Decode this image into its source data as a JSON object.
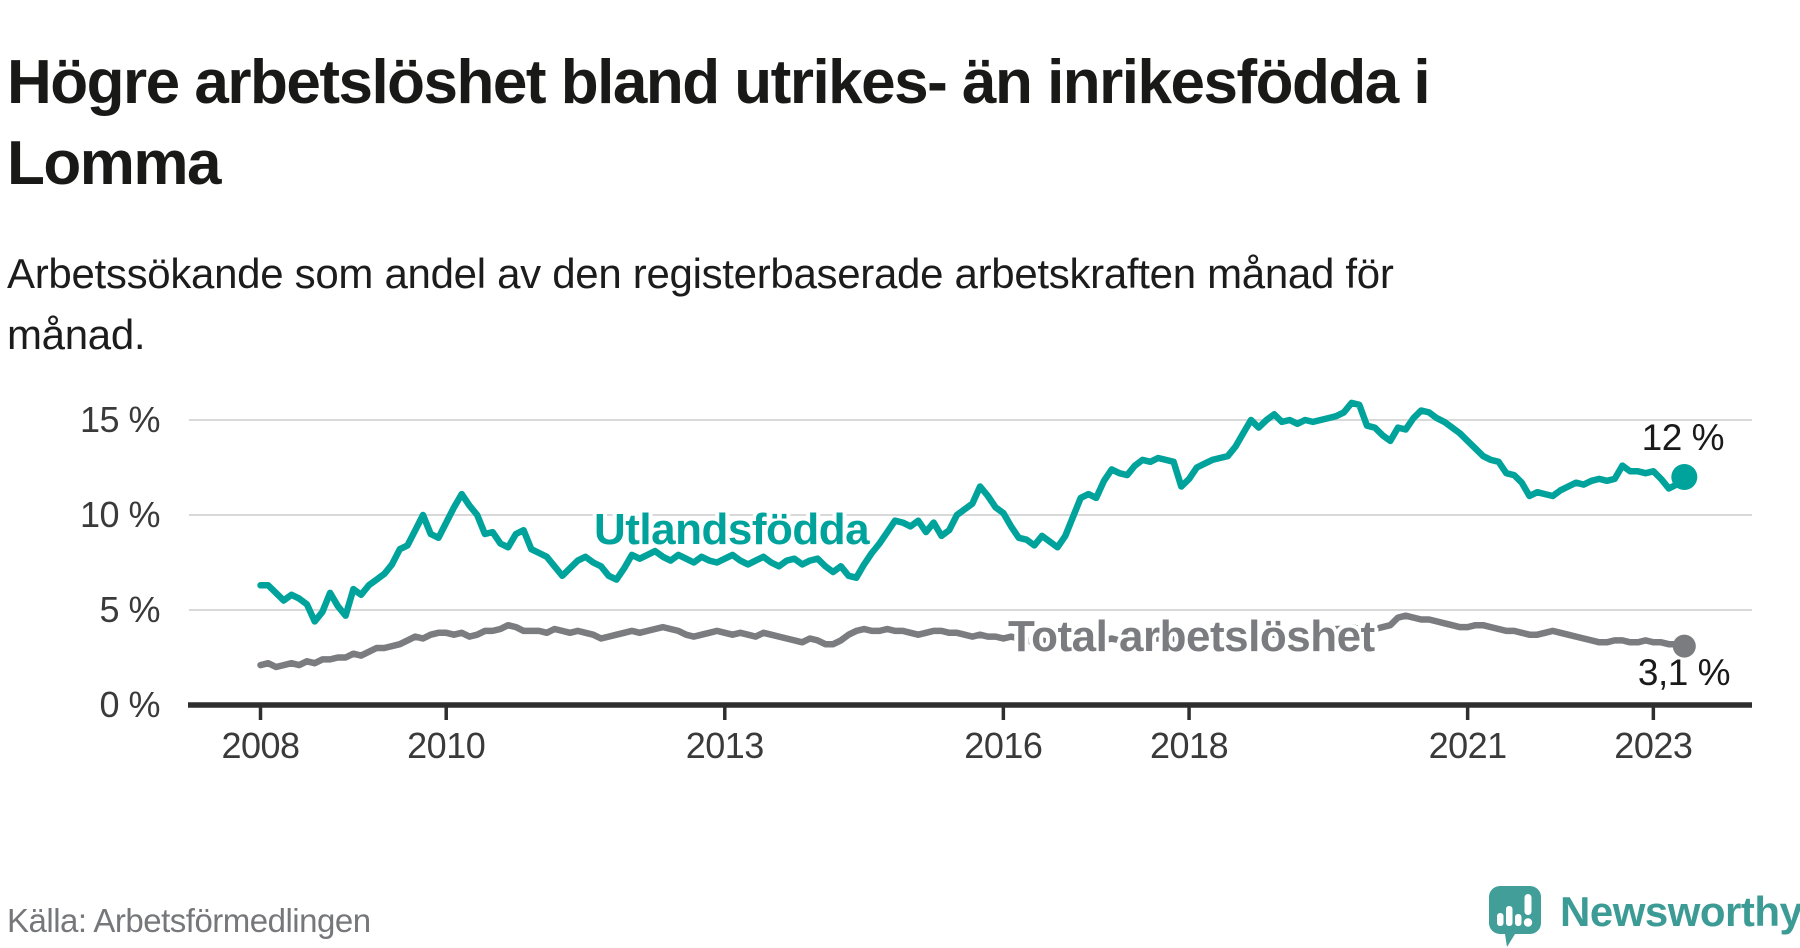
{
  "header": {
    "title": "Högre arbetslöshet bland utrikes- än inrikesfödda i Lomma",
    "title_lines": [
      "Högre arbetslöshet bland utrikes- än inrikesfödda i",
      "Lomma"
    ],
    "subtitle": "Arbetssökande som andel av den registerbaserade arbetskraften månad för månad.",
    "subtitle_lines": [
      "Arbetssökande som andel av den registerbaserade arbetskraften månad för",
      "månad."
    ]
  },
  "footer": {
    "source": "Källa: Arbetsförmedlingen",
    "brand": "Newsworthy"
  },
  "colors": {
    "teal": "#00a39b",
    "gray": "#7b7c80",
    "grid": "#d9d9d9",
    "axis": "#2e2e2e",
    "tick_text": "#3a3a3a",
    "value_text": "#1a1a1a",
    "brand_teal": "#3d9b95",
    "logo_bg": "#419e98"
  },
  "chart_data": {
    "type": "line",
    "title": "Högre arbetslöshet bland utrikes- än inrikesfödda i Lomma",
    "xlabel": "",
    "ylabel": "Arbetssökande som andel av den registerbaserade arbetskraften",
    "unit": "%",
    "frequency": "monthly",
    "x_start": "2008-01",
    "x_end": "2023-05",
    "ylim": [
      0,
      17
    ],
    "grid": "horizontal",
    "y_ticks": [
      {
        "value": 0,
        "label": "0 %"
      },
      {
        "value": 5,
        "label": "5 %"
      },
      {
        "value": 10,
        "label": "10 %"
      },
      {
        "value": 15,
        "label": "15 %"
      }
    ],
    "x_ticks": [
      {
        "year": 2008,
        "label": "2008"
      },
      {
        "year": 2010,
        "label": "2010"
      },
      {
        "year": 2013,
        "label": "2013"
      },
      {
        "year": 2016,
        "label": "2016"
      },
      {
        "year": 2018,
        "label": "2018"
      },
      {
        "year": 2021,
        "label": "2021"
      },
      {
        "year": 2023,
        "label": "2023"
      }
    ],
    "series": [
      {
        "name": "Utlandsfödda",
        "label": "Utlandsfödda",
        "color": "#00a39b",
        "end_label": "12 %",
        "end_value": 12.0,
        "values": [
          6.3,
          6.3,
          5.9,
          5.5,
          5.8,
          5.6,
          5.3,
          4.4,
          4.9,
          5.9,
          5.2,
          4.7,
          6.1,
          5.8,
          6.3,
          6.6,
          6.9,
          7.4,
          8.2,
          8.4,
          9.2,
          10.0,
          9.0,
          8.8,
          9.6,
          10.4,
          11.1,
          10.5,
          10.0,
          9.0,
          9.1,
          8.5,
          8.3,
          9.0,
          9.2,
          8.2,
          8.0,
          7.8,
          7.3,
          6.8,
          7.2,
          7.6,
          7.8,
          7.5,
          7.3,
          6.8,
          6.6,
          7.2,
          7.9,
          7.7,
          7.9,
          8.1,
          7.8,
          7.6,
          7.9,
          7.7,
          7.5,
          7.8,
          7.6,
          7.5,
          7.7,
          7.9,
          7.6,
          7.4,
          7.6,
          7.8,
          7.5,
          7.3,
          7.6,
          7.7,
          7.4,
          7.6,
          7.7,
          7.3,
          7.0,
          7.3,
          6.8,
          6.7,
          7.4,
          8.0,
          8.5,
          9.1,
          9.7,
          9.6,
          9.4,
          9.7,
          9.1,
          9.6,
          8.9,
          9.2,
          10.0,
          10.3,
          10.6,
          11.5,
          11.0,
          10.4,
          10.1,
          9.4,
          8.8,
          8.7,
          8.4,
          8.9,
          8.6,
          8.3,
          8.9,
          9.9,
          10.9,
          11.1,
          10.9,
          11.8,
          12.4,
          12.2,
          12.1,
          12.6,
          12.9,
          12.8,
          13.0,
          12.9,
          12.8,
          11.5,
          11.9,
          12.5,
          12.7,
          12.9,
          13.0,
          13.1,
          13.6,
          14.3,
          15.0,
          14.6,
          15.0,
          15.3,
          14.9,
          15.0,
          14.8,
          15.0,
          14.9,
          15.0,
          15.1,
          15.2,
          15.4,
          15.9,
          15.8,
          14.7,
          14.6,
          14.2,
          13.9,
          14.6,
          14.5,
          15.1,
          15.5,
          15.4,
          15.1,
          14.9,
          14.6,
          14.3,
          13.9,
          13.5,
          13.1,
          12.9,
          12.8,
          12.2,
          12.1,
          11.7,
          11.0,
          11.2,
          11.1,
          11.0,
          11.3,
          11.5,
          11.7,
          11.6,
          11.8,
          11.9,
          11.8,
          11.9,
          12.6,
          12.3,
          12.3,
          12.2,
          12.3,
          11.9,
          11.4,
          11.6,
          12.0
        ]
      },
      {
        "name": "Total arbetslöshet",
        "label": "Total arbetslöshet",
        "color": "#7b7c80",
        "end_label": "3,1 %",
        "end_value": 3.1,
        "values": [
          2.1,
          2.2,
          2.0,
          2.1,
          2.2,
          2.1,
          2.3,
          2.2,
          2.4,
          2.4,
          2.5,
          2.5,
          2.7,
          2.6,
          2.8,
          3.0,
          3.0,
          3.1,
          3.2,
          3.4,
          3.6,
          3.5,
          3.7,
          3.8,
          3.8,
          3.7,
          3.8,
          3.6,
          3.7,
          3.9,
          3.9,
          4.0,
          4.2,
          4.1,
          3.9,
          3.9,
          3.9,
          3.8,
          4.0,
          3.9,
          3.8,
          3.9,
          3.8,
          3.7,
          3.5,
          3.6,
          3.7,
          3.8,
          3.9,
          3.8,
          3.9,
          4.0,
          4.1,
          4.0,
          3.9,
          3.7,
          3.6,
          3.7,
          3.8,
          3.9,
          3.8,
          3.7,
          3.8,
          3.7,
          3.6,
          3.8,
          3.7,
          3.6,
          3.5,
          3.4,
          3.3,
          3.5,
          3.4,
          3.2,
          3.2,
          3.4,
          3.7,
          3.9,
          4.0,
          3.9,
          3.9,
          4.0,
          3.9,
          3.9,
          3.8,
          3.7,
          3.8,
          3.9,
          3.9,
          3.8,
          3.8,
          3.7,
          3.6,
          3.7,
          3.6,
          3.6,
          3.5,
          3.6,
          3.5,
          3.4,
          3.3,
          3.4,
          3.3,
          3.2,
          3.3,
          3.4,
          3.4,
          3.5,
          3.4,
          3.4,
          3.5,
          3.4,
          3.5,
          3.5,
          3.6,
          3.5,
          3.5,
          3.6,
          3.5,
          3.6,
          3.5,
          3.6,
          3.6,
          3.7,
          3.6,
          3.7,
          3.7,
          3.8,
          3.7,
          3.8,
          3.8,
          3.7,
          3.8,
          3.8,
          3.9,
          3.8,
          3.9,
          4.0,
          3.9,
          4.0,
          4.0,
          4.1,
          4.0,
          4.0,
          4.0,
          4.1,
          4.2,
          4.6,
          4.7,
          4.6,
          4.5,
          4.5,
          4.4,
          4.3,
          4.2,
          4.1,
          4.1,
          4.2,
          4.2,
          4.1,
          4.0,
          3.9,
          3.9,
          3.8,
          3.7,
          3.7,
          3.8,
          3.9,
          3.8,
          3.7,
          3.6,
          3.5,
          3.4,
          3.3,
          3.3,
          3.4,
          3.4,
          3.3,
          3.3,
          3.4,
          3.3,
          3.3,
          3.2,
          3.2,
          3.1
        ]
      }
    ]
  }
}
